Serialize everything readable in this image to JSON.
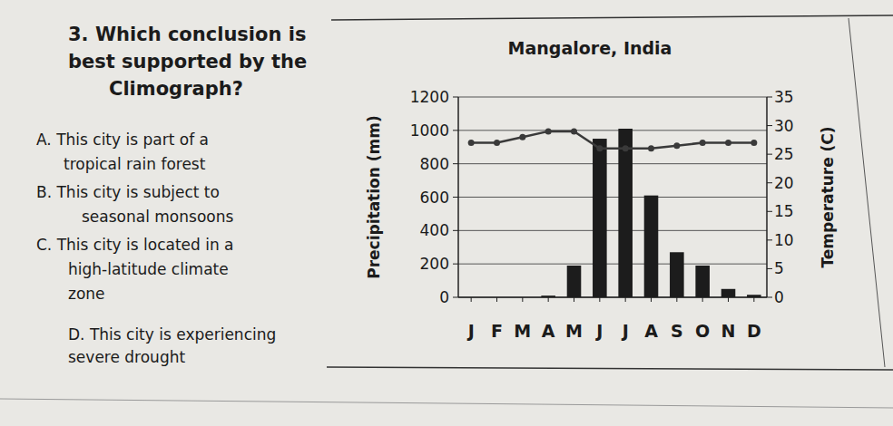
{
  "question": {
    "lines": [
      "3. Which conclusion is",
      "best supported by the",
      "Climograph?"
    ],
    "options": [
      {
        "lines": [
          "A. This city is part of a",
          "tropical rain forest"
        ]
      },
      {
        "lines": [
          "B. This city is subject to",
          "seasonal monsoons"
        ]
      },
      {
        "lines": [
          "C. This city is located in a",
          "high-latitude climate",
          "zone"
        ]
      },
      {
        "lines": [
          "D. This city is experiencing",
          "severe drought"
        ]
      }
    ]
  },
  "chart_data": {
    "type": "bar",
    "title": "Mangalore, India",
    "ylabel": "Precipitation (mm)",
    "y2label": "Temperature (C)",
    "categories": [
      "J",
      "F",
      "M",
      "A",
      "M",
      "J",
      "J",
      "A",
      "S",
      "O",
      "N",
      "D"
    ],
    "series": [
      {
        "type": "bar",
        "color": "#1c1c1c",
        "values": [
          0,
          0,
          0,
          10,
          190,
          950,
          1010,
          610,
          270,
          190,
          50,
          15
        ]
      },
      {
        "type": "line",
        "axis": "y2",
        "color": "#3a3a3a",
        "marker": "circle",
        "values": [
          27,
          27,
          28,
          29,
          29,
          26,
          26,
          26,
          26.5,
          27,
          27,
          27
        ]
      }
    ],
    "ylim": [
      0,
      1200
    ],
    "yticks": [
      0,
      200,
      400,
      600,
      800,
      1000,
      1200
    ],
    "y2lim": [
      0,
      35
    ],
    "y2ticks": [
      0,
      5,
      10,
      15,
      20,
      25,
      30,
      35
    ],
    "grid": true
  }
}
